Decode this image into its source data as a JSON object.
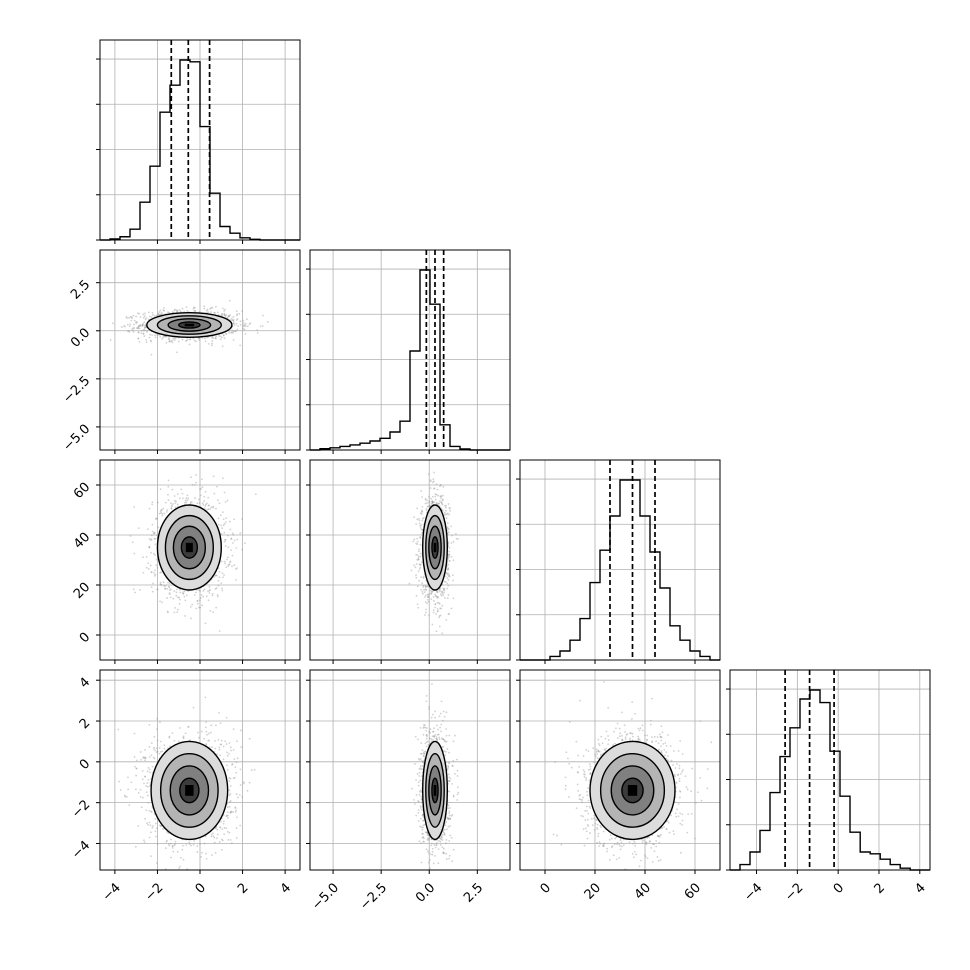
{
  "chart_data": {
    "type": "corner",
    "n_params": 4,
    "grid": true,
    "quantiles": [
      0.16,
      0.5,
      0.84
    ],
    "parameters": [
      {
        "range": [
          -4.7,
          4.7
        ],
        "ticks": [
          -4,
          -2,
          0,
          2,
          4
        ],
        "tick_labels": [
          "−4",
          "−2",
          "0",
          "2",
          "4"
        ],
        "quantile_values": [
          -1.35,
          -0.55,
          0.45
        ],
        "histogram": {
          "edges": [
            -4.7,
            -4.23,
            -3.76,
            -3.29,
            -2.82,
            -2.35,
            -1.88,
            -1.41,
            -0.94,
            -0.47,
            0.0,
            0.47,
            0.94,
            1.41,
            1.88,
            2.35,
            2.82,
            3.29,
            3.76,
            4.23,
            4.7
          ],
          "counts": [
            0.0,
            0.006,
            0.018,
            0.06,
            0.21,
            0.41,
            0.71,
            0.86,
            1.0,
            0.99,
            0.63,
            0.26,
            0.075,
            0.038,
            0.012,
            0.004,
            0.0,
            0.0,
            0.0,
            0.0
          ]
        }
      },
      {
        "range": [
          -6.2,
          4.2
        ],
        "ticks": [
          -5.0,
          -2.5,
          0.0,
          2.5
        ],
        "tick_labels": [
          "−5.0",
          "−2.5",
          "0.0",
          "2.5"
        ],
        "quantile_values": [
          -0.15,
          0.3,
          0.75
        ],
        "histogram": {
          "edges": [
            -6.2,
            -5.68,
            -5.16,
            -4.64,
            -4.12,
            -3.6,
            -3.08,
            -2.56,
            -2.04,
            -1.52,
            -1.0,
            -0.48,
            0.04,
            0.56,
            1.08,
            1.6,
            2.12,
            2.64,
            3.16,
            3.68,
            4.2
          ],
          "counts": [
            0.0,
            0.007,
            0.012,
            0.02,
            0.028,
            0.038,
            0.05,
            0.065,
            0.1,
            0.16,
            0.55,
            1.0,
            0.81,
            0.14,
            0.02,
            0.006,
            0.0,
            0.0,
            0.0,
            0.0
          ]
        }
      },
      {
        "range": [
          -10,
          70
        ],
        "ticks": [
          0,
          20,
          40,
          60
        ],
        "tick_labels": [
          "0",
          "20",
          "40",
          "60"
        ],
        "quantile_values": [
          26,
          35,
          44
        ],
        "histogram": {
          "edges": [
            -10,
            -6,
            -2,
            2,
            6,
            10,
            14,
            18,
            22,
            26,
            30,
            34,
            38,
            42,
            46,
            50,
            54,
            58,
            62,
            66,
            70
          ],
          "counts": [
            0.0,
            0.0,
            0.0,
            0.02,
            0.05,
            0.11,
            0.23,
            0.43,
            0.61,
            0.8,
            1.0,
            1.0,
            0.8,
            0.6,
            0.4,
            0.19,
            0.11,
            0.05,
            0.02,
            0.0
          ]
        }
      },
      {
        "range": [
          -5.3,
          4.5
        ],
        "ticks": [
          -4,
          -2,
          0,
          2,
          4
        ],
        "tick_labels": [
          "−4",
          "−2",
          "0",
          "2",
          "4"
        ],
        "quantile_values": [
          -2.6,
          -1.4,
          -0.2
        ],
        "histogram": {
          "edges": [
            -5.3,
            -4.81,
            -4.32,
            -3.83,
            -3.34,
            -2.85,
            -2.36,
            -1.87,
            -1.38,
            -0.89,
            -0.4,
            0.09,
            0.58,
            1.08,
            1.57,
            2.06,
            2.55,
            3.04,
            3.53,
            4.02,
            4.5
          ],
          "counts": [
            0.0,
            0.03,
            0.1,
            0.22,
            0.43,
            0.63,
            0.79,
            0.95,
            1.0,
            0.93,
            0.66,
            0.41,
            0.21,
            0.1,
            0.09,
            0.06,
            0.03,
            0.01,
            0.0,
            0.0
          ]
        }
      }
    ],
    "correlations": [
      {
        "pair": [
          1,
          0
        ],
        "center": [
          -0.5,
          0.3
        ],
        "sigma": [
          1.0,
          0.32
        ],
        "contour_levels": [
          0.5,
          1.0,
          1.5,
          2.0
        ]
      },
      {
        "pair": [
          2,
          0
        ],
        "center": [
          -0.5,
          35.0
        ],
        "sigma": [
          0.75,
          8.5
        ],
        "contour_levels": [
          0.5,
          1.0,
          1.5,
          2.0
        ]
      },
      {
        "pair": [
          2,
          1
        ],
        "center": [
          0.3,
          35.0
        ],
        "sigma": [
          0.32,
          8.5
        ],
        "contour_levels": [
          0.5,
          1.0,
          1.5,
          2.0
        ]
      },
      {
        "pair": [
          3,
          0
        ],
        "center": [
          -0.5,
          -1.4
        ],
        "sigma": [
          0.9,
          1.2
        ],
        "contour_levels": [
          0.5,
          1.0,
          1.5,
          2.0
        ]
      },
      {
        "pair": [
          3,
          1
        ],
        "center": [
          0.3,
          -1.4
        ],
        "sigma": [
          0.32,
          1.2
        ],
        "contour_levels": [
          0.5,
          1.0,
          1.5,
          2.0
        ]
      },
      {
        "pair": [
          3,
          2
        ],
        "center": [
          35.0,
          -1.4
        ],
        "sigma": [
          8.5,
          1.2
        ],
        "contour_levels": [
          0.5,
          1.0,
          1.5,
          2.0
        ]
      }
    ],
    "colors": {
      "line": "#000000",
      "grid": "#b0b0b0",
      "scatter": "#9a9a9a",
      "density_fill": [
        "#dcdcdc",
        "#b4b4b4",
        "#808080",
        "#3c3c3c"
      ]
    }
  }
}
